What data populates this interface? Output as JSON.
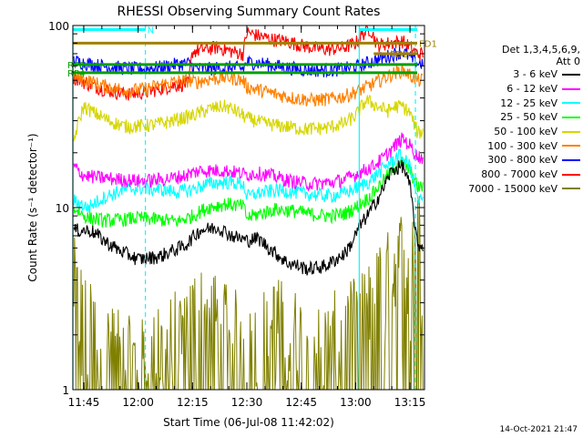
{
  "chart_data": {
    "type": "line",
    "title": "RHESSI Observing Summary Count Rates",
    "xlabel": "Start Time (06-Jul-08 11:42:02)",
    "ylabel": "Count Rate (s⁻¹ detector⁻¹)",
    "yscale": "log",
    "ylim": [
      1,
      100
    ],
    "xlim_minutes": [
      702,
      799
    ],
    "x_ticks": [
      {
        "label": "11:45",
        "minute": 705
      },
      {
        "label": "12:00",
        "minute": 720
      },
      {
        "label": "12:15",
        "minute": 735
      },
      {
        "label": "12:30",
        "minute": 750
      },
      {
        "label": "12:45",
        "minute": 765
      },
      {
        "label": "13:00",
        "minute": 780
      },
      {
        "label": "13:15",
        "minute": 795
      }
    ],
    "y_ticks": [
      {
        "label": "1",
        "value": 1
      },
      {
        "label": "10",
        "value": 10
      },
      {
        "label": "100",
        "value": 100
      }
    ],
    "legend_header": [
      "Det 1,3,4,5,6,9,",
      "Att 0"
    ],
    "legend_position": "right",
    "series": [
      {
        "name": "3 - 6 keV",
        "color": "#000000",
        "points": [
          [
            707,
            7.5
          ],
          [
            711,
            6.5
          ],
          [
            715,
            5.8
          ],
          [
            720,
            5.2
          ],
          [
            726,
            5.4
          ],
          [
            733,
            6.2
          ],
          [
            737,
            7.5
          ],
          [
            742,
            7.8
          ],
          [
            746,
            7.0
          ],
          [
            750,
            6.6
          ],
          [
            753,
            6.8
          ],
          [
            757,
            5.8
          ],
          [
            761,
            5.0
          ],
          [
            767,
            4.6
          ],
          [
            772,
            4.8
          ],
          [
            777,
            5.6
          ],
          [
            779,
            6.4
          ],
          [
            781,
            7.8
          ],
          [
            784,
            9.5
          ],
          [
            787,
            12
          ],
          [
            790,
            16
          ],
          [
            793,
            17
          ],
          [
            795,
            13
          ],
          [
            796,
            9.0
          ],
          [
            797,
            6.2
          ]
        ]
      },
      {
        "name": "6 - 12 keV",
        "color": "#ff00ff",
        "points": [
          [
            702,
            17
          ],
          [
            705,
            15
          ],
          [
            711,
            14.5
          ],
          [
            717,
            14.2
          ],
          [
            721,
            14.0
          ],
          [
            725,
            14.2
          ],
          [
            729,
            14.5
          ],
          [
            733,
            15
          ],
          [
            737,
            16
          ],
          [
            744,
            16
          ],
          [
            748,
            15.5
          ],
          [
            750,
            15.2
          ],
          [
            753,
            15.5
          ],
          [
            757,
            15.0
          ],
          [
            762,
            14.0
          ],
          [
            768,
            13.5
          ],
          [
            774,
            13.8
          ],
          [
            778,
            14.5
          ],
          [
            781,
            15.5
          ],
          [
            785,
            17
          ],
          [
            788,
            19
          ],
          [
            791,
            22
          ],
          [
            793,
            24
          ],
          [
            795,
            22
          ],
          [
            797,
            19
          ]
        ]
      },
      {
        "name": "12 - 25 keV",
        "color": "#00ffff",
        "points": [
          [
            702,
            11
          ],
          [
            706,
            10
          ],
          [
            711,
            11.5
          ],
          [
            716,
            12.5
          ],
          [
            720,
            12.8
          ],
          [
            726,
            12.6
          ],
          [
            731,
            12.2
          ],
          [
            735,
            12.6
          ],
          [
            739,
            13.5
          ],
          [
            744,
            13.8
          ],
          [
            749,
            13.5
          ],
          [
            750,
            11.5
          ],
          [
            753,
            12.0
          ],
          [
            758,
            12.5
          ],
          [
            763,
            12.2
          ],
          [
            768,
            11.8
          ],
          [
            773,
            11.6
          ],
          [
            777,
            12.0
          ],
          [
            780,
            12.8
          ],
          [
            784,
            14
          ],
          [
            787,
            16
          ],
          [
            790,
            18
          ],
          [
            792,
            19.5
          ],
          [
            795,
            17
          ],
          [
            797,
            11
          ]
        ]
      },
      {
        "name": "25 - 50 keV",
        "color": "#00ff00",
        "points": [
          [
            702,
            10
          ],
          [
            706,
            8.8
          ],
          [
            711,
            8.5
          ],
          [
            716,
            8.6
          ],
          [
            720,
            8.8
          ],
          [
            726,
            8.6
          ],
          [
            731,
            8.4
          ],
          [
            735,
            9.0
          ],
          [
            739,
            10
          ],
          [
            744,
            10.5
          ],
          [
            749,
            10.2
          ],
          [
            750,
            8.8
          ],
          [
            753,
            9.2
          ],
          [
            758,
            9.8
          ],
          [
            763,
            9.6
          ],
          [
            768,
            9.2
          ],
          [
            773,
            9.0
          ],
          [
            777,
            9.3
          ],
          [
            780,
            10
          ],
          [
            784,
            11.5
          ],
          [
            787,
            13.5
          ],
          [
            790,
            16
          ],
          [
            792,
            18
          ],
          [
            795,
            16
          ],
          [
            797,
            13
          ]
        ]
      },
      {
        "name": "50 - 100 keV",
        "color": "#d6d600",
        "points": [
          [
            702,
            22
          ],
          [
            705,
            36
          ],
          [
            708,
            33
          ],
          [
            712,
            30
          ],
          [
            716,
            28
          ],
          [
            720,
            28
          ],
          [
            724,
            28.5
          ],
          [
            728,
            29.5
          ],
          [
            732,
            31
          ],
          [
            735,
            32
          ],
          [
            740,
            35
          ],
          [
            744,
            36
          ],
          [
            747,
            34
          ],
          [
            750,
            31
          ],
          [
            755,
            29
          ],
          [
            760,
            28
          ],
          [
            766,
            27
          ],
          [
            772,
            27.5
          ],
          [
            777,
            29
          ],
          [
            780,
            32
          ],
          [
            783,
            39
          ],
          [
            786,
            36
          ],
          [
            789,
            34
          ],
          [
            791,
            36
          ],
          [
            793,
            36
          ],
          [
            795,
            33
          ],
          [
            797,
            26
          ]
        ]
      },
      {
        "name": "100 - 300 keV",
        "color": "#ff8000",
        "points": [
          [
            702,
            52
          ],
          [
            706,
            50
          ],
          [
            710,
            47
          ],
          [
            714,
            45
          ],
          [
            718,
            44
          ],
          [
            722,
            45
          ],
          [
            726,
            47
          ],
          [
            730,
            49
          ],
          [
            734,
            50
          ],
          [
            736,
            49
          ],
          [
            740,
            51
          ],
          [
            745,
            52
          ],
          [
            749,
            50
          ],
          [
            750,
            46
          ],
          [
            754,
            44
          ],
          [
            758,
            42
          ],
          [
            763,
            40
          ],
          [
            768,
            39
          ],
          [
            773,
            39.5
          ],
          [
            777,
            41
          ],
          [
            781,
            44
          ],
          [
            785,
            48
          ],
          [
            789,
            53
          ],
          [
            793,
            57
          ],
          [
            797,
            50
          ]
        ]
      },
      {
        "name": "300 - 800 keV",
        "color": "#0000ff",
        "points": [
          [
            702,
            64
          ],
          [
            706,
            62
          ],
          [
            710,
            60
          ],
          [
            714,
            59
          ],
          [
            718,
            58
          ],
          [
            722,
            58
          ],
          [
            726,
            59
          ],
          [
            730,
            61
          ],
          [
            734,
            62
          ],
          [
            736,
            58
          ],
          [
            740,
            58
          ],
          [
            745,
            59
          ],
          [
            749,
            58
          ],
          [
            750,
            63
          ],
          [
            754,
            62
          ],
          [
            758,
            60
          ],
          [
            763,
            58
          ],
          [
            768,
            57
          ],
          [
            773,
            57
          ],
          [
            777,
            58
          ],
          [
            781,
            60
          ],
          [
            785,
            64
          ],
          [
            789,
            68
          ],
          [
            793,
            72
          ],
          [
            797,
            62
          ]
        ]
      },
      {
        "name": "800 - 7000 keV",
        "color": "#ff0000",
        "points": [
          [
            702,
            52
          ],
          [
            706,
            48
          ],
          [
            710,
            45
          ],
          [
            714,
            43
          ],
          [
            718,
            42
          ],
          [
            722,
            43
          ],
          [
            726,
            45
          ],
          [
            730,
            47
          ],
          [
            734,
            48
          ],
          [
            735,
            72
          ],
          [
            738,
            74
          ],
          [
            742,
            76
          ],
          [
            746,
            72
          ],
          [
            749,
            70
          ],
          [
            750,
            92
          ],
          [
            753,
            88
          ],
          [
            757,
            84
          ],
          [
            761,
            82
          ],
          [
            765,
            78
          ],
          [
            769,
            75
          ],
          [
            773,
            74
          ],
          [
            777,
            76
          ],
          [
            780,
            80
          ],
          [
            782,
            90
          ],
          [
            784,
            96
          ],
          [
            786,
            78
          ],
          [
            789,
            80
          ],
          [
            793,
            82
          ],
          [
            797,
            70
          ]
        ]
      },
      {
        "name": "7000 - 15000 keV",
        "color": "#808000",
        "points": [
          [
            702,
            4.2
          ],
          [
            704,
            3.0
          ],
          [
            706,
            2.4
          ],
          [
            708,
            2.0
          ],
          [
            712,
            1.7
          ],
          [
            716,
            1.5
          ],
          [
            720,
            1.4
          ],
          [
            724,
            1.5
          ],
          [
            728,
            1.8
          ],
          [
            732,
            2.2
          ],
          [
            736,
            2.8
          ],
          [
            740,
            2.6
          ],
          [
            744,
            2.2
          ],
          [
            748,
            2.0
          ],
          [
            750,
            1.5
          ],
          [
            754,
            2.0
          ],
          [
            758,
            2.4
          ],
          [
            762,
            2.2
          ],
          [
            766,
            1.8
          ],
          [
            770,
            1.7
          ],
          [
            774,
            2.0
          ],
          [
            778,
            2.2
          ],
          [
            782,
            2.6
          ],
          [
            785,
            3.2
          ],
          [
            788,
            4.0
          ],
          [
            791,
            5.0
          ],
          [
            794,
            6.2
          ],
          [
            796,
            6.6
          ],
          [
            797,
            7.0
          ]
        ]
      }
    ],
    "guide_lines": [
      {
        "style": "solid",
        "color": "#00ffff",
        "minute": 702
      },
      {
        "style": "dashed",
        "color": "#00ffff",
        "minute": 722
      },
      {
        "style": "solid",
        "color": "#00ffff",
        "minute": 781
      },
      {
        "style": "dashed",
        "color": "#00ffff",
        "minute": 796.5
      }
    ],
    "flags": [
      {
        "label": "N",
        "color": "#00ffff",
        "y": 95,
        "from": 702,
        "to": 722,
        "label_at": "end"
      },
      {
        "label": "",
        "color": "#00ffff",
        "y": 95,
        "from": 781,
        "to": 797,
        "label_at": "none"
      },
      {
        "label": "FD1",
        "color": "#a08000",
        "y": 80,
        "from": 702,
        "to": 797,
        "label_at": "end"
      },
      {
        "label": "FD2",
        "color": "#a08000",
        "y": 70,
        "from": 785,
        "to": 797,
        "label_at": "mid"
      },
      {
        "label": "RP0",
        "color": "#00a000",
        "y": 61,
        "from": 702,
        "to": 797,
        "label_at": "start"
      },
      {
        "label": "RP4",
        "color": "#00a000",
        "y": 55,
        "from": 702,
        "to": 797,
        "label_at": "start"
      }
    ]
  },
  "footer": {
    "timestamp": "14-Oct-2021 21:47"
  }
}
